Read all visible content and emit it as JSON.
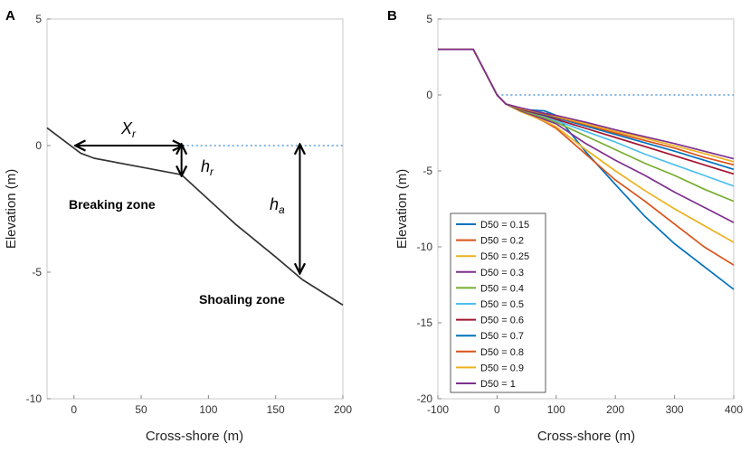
{
  "figure": {
    "panel_a_label": "A",
    "panel_b_label": "B"
  },
  "chart_data": [
    {
      "type": "line",
      "panel": "A",
      "xlabel": "Cross-shore (m)",
      "ylabel": "Elevation (m)",
      "xlim": [
        -20,
        200
      ],
      "ylim": [
        -10,
        5
      ],
      "x_ticks": [
        0,
        50,
        100,
        150,
        200
      ],
      "x_tick_labels": [
        "0",
        "50",
        "100",
        "150",
        "200"
      ],
      "y_ticks": [
        -10,
        -5,
        0,
        5
      ],
      "y_tick_labels": [
        "-10",
        "-5",
        "0",
        "5"
      ],
      "grid": false,
      "series": [
        {
          "name": "profile",
          "color": "#333333",
          "x": [
            -20,
            0,
            5,
            15,
            30,
            50,
            80,
            120,
            150,
            170,
            200
          ],
          "y": [
            0.7,
            -0.1,
            -0.3,
            -0.5,
            -0.65,
            -0.85,
            -1.15,
            -3.1,
            -4.4,
            -5.3,
            -6.3
          ]
        }
      ],
      "reference_line": {
        "y": 0,
        "color": "#5b9bd5",
        "style": "dotted"
      },
      "annotations": {
        "xr_label": "X",
        "xr_subscript": "r",
        "hr_label": "h",
        "hr_subscript": "r",
        "ha_label": "h",
        "ha_subscript": "a",
        "breaking_zone": "Breaking zone",
        "shoaling_zone": "Shoaling zone"
      },
      "arrows": {
        "xr": {
          "x": [
            2,
            80
          ],
          "y": [
            0,
            0
          ]
        },
        "hr": {
          "x": [
            80,
            80
          ],
          "y": [
            0,
            -1.15
          ]
        },
        "ha": {
          "x": [
            168,
            168
          ],
          "y": [
            0,
            -5
          ]
        }
      }
    },
    {
      "type": "line",
      "panel": "B",
      "xlabel": "Cross-shore (m)",
      "ylabel": "Elevation (m)",
      "xlim": [
        -100,
        400
      ],
      "ylim": [
        -20,
        5
      ],
      "x_ticks": [
        -100,
        0,
        100,
        200,
        300,
        400
      ],
      "x_tick_labels": [
        "-100",
        "0",
        "100",
        "200",
        "300",
        "400"
      ],
      "y_ticks": [
        -20,
        -15,
        -10,
        -5,
        0,
        5
      ],
      "y_tick_labels": [
        "-20",
        "-15",
        "-10",
        "-5",
        "0",
        "5"
      ],
      "grid": false,
      "reference_line": {
        "y": 0,
        "color": "#5b9bd5",
        "style": "dotted"
      },
      "legend_position": "bottom-left",
      "series": [
        {
          "name": "D50 = 0.15",
          "color": "#0072bd",
          "x": [
            -100,
            -40,
            0,
            15,
            40,
            80,
            100,
            150,
            200,
            250,
            300,
            350,
            400
          ],
          "y": [
            3,
            3,
            0,
            -0.6,
            -0.95,
            -1.05,
            -1.35,
            -3.75,
            -5.9,
            -8,
            -9.8,
            -11.3,
            -12.8
          ]
        },
        {
          "name": "D50 = 0.2",
          "color": "#d95319",
          "x": [
            -100,
            -40,
            0,
            15,
            40,
            80,
            100,
            150,
            200,
            250,
            300,
            350,
            400
          ],
          "y": [
            3,
            3,
            0,
            -0.6,
            -1.05,
            -1.75,
            -2.2,
            -3.9,
            -5.6,
            -7,
            -8.5,
            -10,
            -11.2
          ]
        },
        {
          "name": "D50 = 0.25",
          "color": "#edb120",
          "x": [
            -100,
            -40,
            0,
            15,
            40,
            80,
            100,
            150,
            200,
            250,
            300,
            350,
            400
          ],
          "y": [
            3,
            3,
            0,
            -0.6,
            -1.1,
            -1.7,
            -2.1,
            -3.6,
            -5,
            -6.3,
            -7.5,
            -8.6,
            -9.7
          ]
        },
        {
          "name": "D50 = 0.3",
          "color": "#7e2f8e",
          "x": [
            -100,
            -40,
            0,
            15,
            40,
            80,
            100,
            150,
            200,
            250,
            300,
            350,
            400
          ],
          "y": [
            3,
            3,
            0,
            -0.6,
            -1.05,
            -1.6,
            -1.9,
            -3.2,
            -4.3,
            -5.3,
            -6.4,
            -7.4,
            -8.4
          ]
        },
        {
          "name": "D50 = 0.4",
          "color": "#77ac30",
          "x": [
            -100,
            -40,
            0,
            15,
            40,
            80,
            100,
            150,
            200,
            250,
            300,
            350,
            400
          ],
          "y": [
            3,
            3,
            0,
            -0.6,
            -1.0,
            -1.5,
            -1.8,
            -2.7,
            -3.6,
            -4.5,
            -5.3,
            -6.2,
            -7
          ]
        },
        {
          "name": "D50 = 0.5",
          "color": "#4dbeee",
          "x": [
            -100,
            -40,
            0,
            15,
            40,
            80,
            100,
            150,
            200,
            250,
            300,
            350,
            400
          ],
          "y": [
            3,
            3,
            0,
            -0.6,
            -0.95,
            -1.4,
            -1.7,
            -2.4,
            -3.1,
            -3.9,
            -4.6,
            -5.3,
            -6
          ]
        },
        {
          "name": "D50 = 0.6",
          "color": "#a2142f",
          "x": [
            -100,
            -40,
            0,
            15,
            40,
            80,
            100,
            150,
            200,
            250,
            300,
            350,
            400
          ],
          "y": [
            3,
            3,
            0,
            -0.6,
            -0.95,
            -1.35,
            -1.6,
            -2.2,
            -2.8,
            -3.4,
            -4,
            -4.6,
            -5.2
          ]
        },
        {
          "name": "D50 = 0.7",
          "color": "#0072bd",
          "x": [
            -100,
            -40,
            0,
            15,
            40,
            80,
            100,
            150,
            200,
            250,
            300,
            350,
            400
          ],
          "y": [
            3,
            3,
            0,
            -0.6,
            -0.9,
            -1.3,
            -1.5,
            -2.05,
            -2.6,
            -3.15,
            -3.7,
            -4.3,
            -4.9
          ]
        },
        {
          "name": "D50 = 0.8",
          "color": "#d95319",
          "x": [
            -100,
            -40,
            0,
            15,
            40,
            80,
            100,
            150,
            200,
            250,
            300,
            350,
            400
          ],
          "y": [
            3,
            3,
            0,
            -0.6,
            -0.9,
            -1.25,
            -1.45,
            -1.95,
            -2.5,
            -3,
            -3.5,
            -4.1,
            -4.6
          ]
        },
        {
          "name": "D50 = 0.9",
          "color": "#edb120",
          "x": [
            -100,
            -40,
            0,
            15,
            40,
            80,
            100,
            150,
            200,
            250,
            300,
            350,
            400
          ],
          "y": [
            3,
            3,
            0,
            -0.6,
            -0.9,
            -1.2,
            -1.4,
            -1.9,
            -2.4,
            -2.85,
            -3.35,
            -3.85,
            -4.4
          ]
        },
        {
          "name": "D50 = 1",
          "color": "#7e2f8e",
          "x": [
            -100,
            -40,
            0,
            15,
            40,
            80,
            100,
            150,
            200,
            250,
            300,
            350,
            400
          ],
          "y": [
            3,
            3,
            0,
            -0.6,
            -0.85,
            -1.2,
            -1.35,
            -1.8,
            -2.3,
            -2.75,
            -3.2,
            -3.7,
            -4.2
          ]
        }
      ]
    }
  ]
}
